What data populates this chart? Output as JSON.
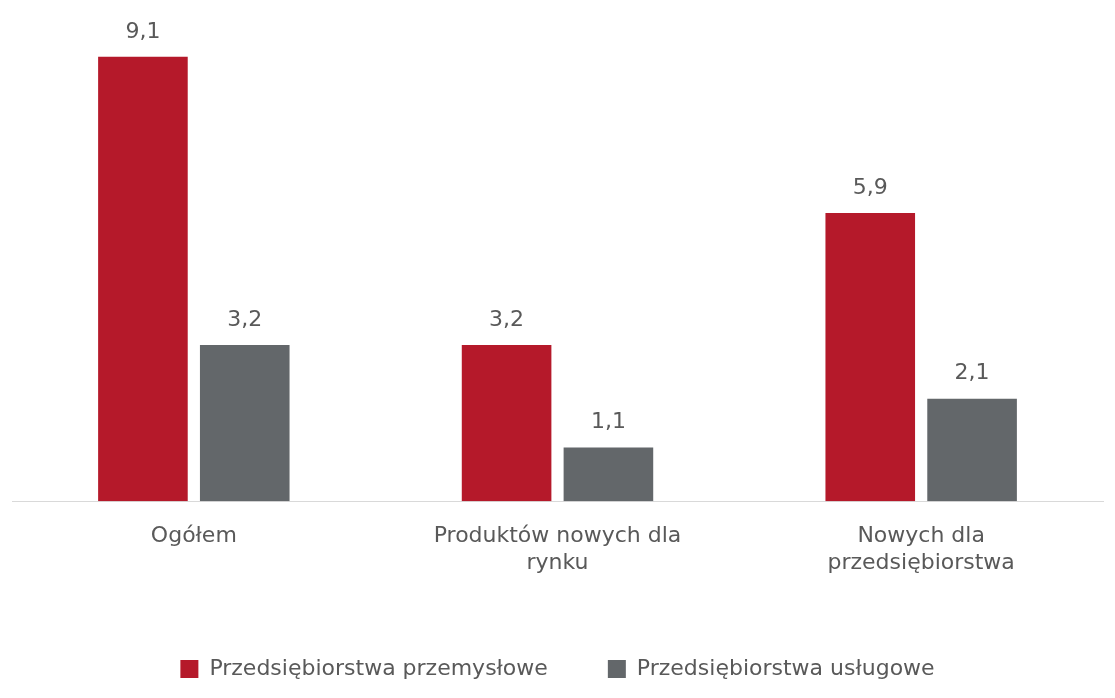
{
  "chart_data": {
    "type": "bar",
    "categories": [
      "Ogółem",
      "Produktów nowych dla rynku",
      "Nowych dla przedsiębiorstwa"
    ],
    "series": [
      {
        "name": "Przedsiębiorstwa przemysłowe",
        "color": "#b5192a",
        "values": [
          9.1,
          3.2,
          5.9
        ],
        "value_labels": [
          "9,1",
          "3,2",
          "5,9"
        ]
      },
      {
        "name": "Przedsiębiorstwa usługowe",
        "color": "#63676a",
        "values": [
          3.2,
          1.1,
          2.1
        ],
        "value_labels": [
          "3,2",
          "1,1",
          "2,1"
        ]
      }
    ],
    "legend": "bottom",
    "grid": false
  }
}
